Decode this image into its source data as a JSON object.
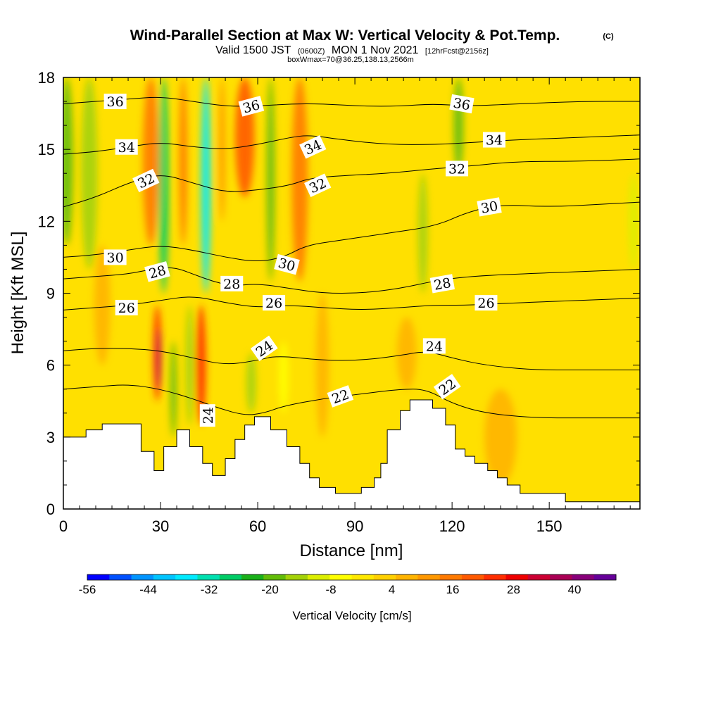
{
  "title": {
    "main": "Wind-Parallel Section at Max W: Vertical Velocity & Pot.Temp.",
    "copyright": "(C)",
    "valid_a": "Valid 1500 JST",
    "valid_utc": "(0600Z)",
    "valid_b": "MON 1 Nov 2021",
    "fcst": "[12hrFcst@2156z]",
    "box": "boxWmax=70@36.25,138.13,2566m"
  },
  "chart_data": {
    "type": "heatmap",
    "xlabel": "Distance [nm]",
    "ylabel": "Height [Kft MSL]",
    "xlim": [
      0,
      178
    ],
    "ylim": [
      0,
      18
    ],
    "xticks": [
      0,
      30,
      60,
      90,
      120,
      150
    ],
    "yticks": [
      0,
      3,
      6,
      9,
      12,
      15,
      18
    ],
    "colorbar": {
      "label": "Vertical Velocity [cm/s]",
      "tick_labels": [
        "-56",
        "-44",
        "-32",
        "-20",
        "-8",
        "4",
        "16",
        "28",
        "40"
      ],
      "colors": [
        "#0000ff",
        "#0050ff",
        "#0094ff",
        "#00c4ff",
        "#00eaff",
        "#00e0b0",
        "#00cc66",
        "#1ab01a",
        "#62bc08",
        "#a4d208",
        "#dcee00",
        "#ffff00",
        "#ffe800",
        "#ffd000",
        "#ffb400",
        "#ff9800",
        "#ff7a00",
        "#ff5a00",
        "#ff2e00",
        "#ee0000",
        "#cc0033",
        "#aa0055",
        "#88007a",
        "#660099"
      ]
    },
    "terrain_kft": [
      [
        0,
        3.0
      ],
      [
        7,
        3.0
      ],
      [
        7,
        3.3
      ],
      [
        12,
        3.3
      ],
      [
        12,
        3.55
      ],
      [
        24,
        3.55
      ],
      [
        24,
        2.4
      ],
      [
        28,
        2.4
      ],
      [
        28,
        1.6
      ],
      [
        31,
        1.6
      ],
      [
        31,
        2.6
      ],
      [
        35,
        2.6
      ],
      [
        35,
        3.3
      ],
      [
        39,
        3.3
      ],
      [
        39,
        2.6
      ],
      [
        43,
        2.6
      ],
      [
        43,
        1.9
      ],
      [
        46,
        1.9
      ],
      [
        46,
        1.4
      ],
      [
        50,
        1.4
      ],
      [
        50,
        2.1
      ],
      [
        53,
        2.1
      ],
      [
        53,
        2.9
      ],
      [
        56,
        2.9
      ],
      [
        56,
        3.5
      ],
      [
        59,
        3.5
      ],
      [
        59,
        3.85
      ],
      [
        64,
        3.85
      ],
      [
        64,
        3.3
      ],
      [
        69,
        3.3
      ],
      [
        69,
        2.6
      ],
      [
        73,
        2.6
      ],
      [
        73,
        1.9
      ],
      [
        76,
        1.9
      ],
      [
        76,
        1.3
      ],
      [
        79,
        1.3
      ],
      [
        79,
        0.9
      ],
      [
        84,
        0.9
      ],
      [
        84,
        0.65
      ],
      [
        92,
        0.65
      ],
      [
        92,
        0.9
      ],
      [
        96,
        0.9
      ],
      [
        96,
        1.3
      ],
      [
        98,
        1.3
      ],
      [
        98,
        1.9
      ],
      [
        100,
        1.9
      ],
      [
        100,
        3.3
      ],
      [
        104,
        3.3
      ],
      [
        104,
        4.1
      ],
      [
        107,
        4.1
      ],
      [
        107,
        4.55
      ],
      [
        114,
        4.55
      ],
      [
        114,
        4.2
      ],
      [
        118,
        4.2
      ],
      [
        118,
        3.5
      ],
      [
        121,
        3.5
      ],
      [
        121,
        2.5
      ],
      [
        124,
        2.5
      ],
      [
        124,
        2.2
      ],
      [
        127,
        2.2
      ],
      [
        127,
        1.9
      ],
      [
        131,
        1.9
      ],
      [
        131,
        1.6
      ],
      [
        134,
        1.6
      ],
      [
        134,
        1.3
      ],
      [
        137,
        1.3
      ],
      [
        137,
        1.0
      ],
      [
        141,
        1.0
      ],
      [
        141,
        0.65
      ],
      [
        155,
        0.65
      ],
      [
        155,
        0.3
      ],
      [
        178,
        0.3
      ]
    ],
    "w_features": [
      {
        "x": 1,
        "y0": 11,
        "y1": 18,
        "w": 4,
        "value": -20
      },
      {
        "x": 8,
        "y0": 10,
        "y1": 18,
        "w": 5,
        "value": -14
      },
      {
        "x": 12,
        "y0": 6,
        "y1": 11,
        "w": 5,
        "value": 12
      },
      {
        "x": 27,
        "y0": 11,
        "y1": 18,
        "w": 5,
        "value": 22
      },
      {
        "x": 31,
        "y0": 9,
        "y1": 18,
        "w": 3,
        "value": -26
      },
      {
        "x": 29,
        "y0": 4.5,
        "y1": 8.5,
        "w": 2.5,
        "value": 30
      },
      {
        "x": 29.5,
        "y0": 5,
        "y1": 7.5,
        "w": 1.2,
        "value": 46
      },
      {
        "x": 34,
        "y0": 3,
        "y1": 7,
        "w": 2,
        "value": -18
      },
      {
        "x": 37,
        "y0": 11,
        "y1": 18,
        "w": 2.5,
        "value": 20
      },
      {
        "x": 39,
        "y0": 3.5,
        "y1": 8.5,
        "w": 2.5,
        "value": -12
      },
      {
        "x": 42.5,
        "y0": 3.5,
        "y1": 8.5,
        "w": 3,
        "value": 32
      },
      {
        "x": 44,
        "y0": 9,
        "y1": 18,
        "w": 3,
        "value": -36
      },
      {
        "x": 49,
        "y0": 12,
        "y1": 18,
        "w": 2,
        "value": 18
      },
      {
        "x": 56,
        "y0": 13,
        "y1": 18,
        "w": 6,
        "value": 26
      },
      {
        "x": 58,
        "y0": 4,
        "y1": 6.5,
        "w": 3,
        "value": -14
      },
      {
        "x": 64,
        "y0": 9.5,
        "y1": 18,
        "w": 2.5,
        "value": -20
      },
      {
        "x": 68,
        "y0": 4,
        "y1": 7,
        "w": 3,
        "value": -4
      },
      {
        "x": 73,
        "y0": 9.5,
        "y1": 18,
        "w": 5,
        "value": 22
      },
      {
        "x": 80,
        "y0": 3,
        "y1": 9,
        "w": 4,
        "value": 14
      },
      {
        "x": 111,
        "y0": 9,
        "y1": 14,
        "w": 3,
        "value": -14
      },
      {
        "x": 122,
        "y0": 14,
        "y1": 18,
        "w": 3,
        "value": -18
      },
      {
        "x": 106,
        "y0": 5,
        "y1": 8,
        "w": 6,
        "value": 10
      },
      {
        "x": 135,
        "y0": 1,
        "y1": 5,
        "w": 10,
        "value": 12
      },
      {
        "x": 176,
        "y0": 10,
        "y1": 14,
        "w": 3,
        "value": -10
      }
    ],
    "theta_contours": [
      {
        "value": 22,
        "points": [
          [
            0,
            5.0
          ],
          [
            10,
            5.1
          ],
          [
            20,
            5.2
          ],
          [
            30,
            5.0
          ],
          [
            40,
            4.6
          ],
          [
            48,
            4.2
          ],
          [
            56,
            3.9
          ],
          [
            62,
            4.0
          ],
          [
            68,
            4.3
          ],
          [
            80,
            4.6
          ],
          [
            92,
            4.8
          ],
          [
            104,
            5.0
          ],
          [
            112,
            5.0
          ],
          [
            120,
            4.4
          ],
          [
            130,
            4.0
          ],
          [
            145,
            3.8
          ],
          [
            160,
            3.8
          ],
          [
            178,
            3.8
          ]
        ]
      },
      {
        "value": 24,
        "points": [
          [
            0,
            6.6
          ],
          [
            10,
            6.7
          ],
          [
            20,
            6.7
          ],
          [
            30,
            6.6
          ],
          [
            40,
            6.3
          ],
          [
            50,
            6.0
          ],
          [
            60,
            6.2
          ],
          [
            66,
            6.4
          ],
          [
            80,
            6.2
          ],
          [
            92,
            6.2
          ],
          [
            104,
            6.4
          ],
          [
            112,
            6.6
          ],
          [
            120,
            6.3
          ],
          [
            130,
            6.0
          ],
          [
            145,
            5.8
          ],
          [
            160,
            5.8
          ],
          [
            178,
            5.8
          ]
        ]
      },
      {
        "value": 26,
        "points": [
          [
            0,
            8.3
          ],
          [
            10,
            8.4
          ],
          [
            20,
            8.5
          ],
          [
            30,
            8.7
          ],
          [
            40,
            8.9
          ],
          [
            50,
            8.6
          ],
          [
            60,
            8.4
          ],
          [
            70,
            8.5
          ],
          [
            80,
            8.4
          ],
          [
            92,
            8.3
          ],
          [
            104,
            8.4
          ],
          [
            114,
            8.5
          ],
          [
            125,
            8.5
          ],
          [
            140,
            8.6
          ],
          [
            160,
            8.7
          ],
          [
            178,
            8.8
          ]
        ]
      },
      {
        "value": 28,
        "points": [
          [
            0,
            9.6
          ],
          [
            10,
            9.7
          ],
          [
            20,
            9.8
          ],
          [
            27,
            10.0
          ],
          [
            34,
            10.1
          ],
          [
            40,
            9.8
          ],
          [
            46,
            9.5
          ],
          [
            52,
            9.3
          ],
          [
            60,
            9.4
          ],
          [
            70,
            9.2
          ],
          [
            80,
            9.0
          ],
          [
            92,
            9.0
          ],
          [
            104,
            9.2
          ],
          [
            114,
            9.5
          ],
          [
            125,
            9.7
          ],
          [
            140,
            9.8
          ],
          [
            160,
            9.9
          ],
          [
            178,
            10.0
          ]
        ]
      },
      {
        "value": 30,
        "points": [
          [
            0,
            10.5
          ],
          [
            10,
            10.6
          ],
          [
            20,
            10.8
          ],
          [
            30,
            11.0
          ],
          [
            40,
            10.8
          ],
          [
            50,
            10.5
          ],
          [
            60,
            10.3
          ],
          [
            68,
            10.5
          ],
          [
            75,
            11.0
          ],
          [
            85,
            11.2
          ],
          [
            100,
            11.5
          ],
          [
            115,
            11.8
          ],
          [
            125,
            12.4
          ],
          [
            135,
            12.7
          ],
          [
            150,
            12.6
          ],
          [
            165,
            12.7
          ],
          [
            178,
            12.8
          ]
        ]
      },
      {
        "value": 32,
        "points": [
          [
            0,
            12.6
          ],
          [
            10,
            13.0
          ],
          [
            20,
            13.6
          ],
          [
            30,
            14.0
          ],
          [
            40,
            13.6
          ],
          [
            50,
            13.2
          ],
          [
            60,
            13.3
          ],
          [
            70,
            13.5
          ],
          [
            76,
            13.8
          ],
          [
            86,
            13.9
          ],
          [
            100,
            14.0
          ],
          [
            115,
            14.2
          ],
          [
            125,
            14.3
          ],
          [
            140,
            14.5
          ],
          [
            160,
            14.5
          ],
          [
            178,
            14.6
          ]
        ]
      },
      {
        "value": 34,
        "points": [
          [
            0,
            14.8
          ],
          [
            10,
            14.9
          ],
          [
            20,
            15.1
          ],
          [
            30,
            15.3
          ],
          [
            40,
            15.1
          ],
          [
            50,
            15.0
          ],
          [
            60,
            15.2
          ],
          [
            70,
            15.5
          ],
          [
            76,
            15.6
          ],
          [
            86,
            15.4
          ],
          [
            100,
            15.2
          ],
          [
            115,
            15.2
          ],
          [
            128,
            15.3
          ],
          [
            140,
            15.4
          ],
          [
            160,
            15.5
          ],
          [
            178,
            15.6
          ]
        ]
      },
      {
        "value": 36,
        "points": [
          [
            0,
            16.9
          ],
          [
            10,
            17.0
          ],
          [
            20,
            17.1
          ],
          [
            30,
            17.2
          ],
          [
            40,
            17.0
          ],
          [
            50,
            16.8
          ],
          [
            60,
            16.8
          ],
          [
            70,
            16.9
          ],
          [
            80,
            16.9
          ],
          [
            92,
            16.8
          ],
          [
            104,
            16.8
          ],
          [
            114,
            16.9
          ],
          [
            125,
            16.8
          ],
          [
            140,
            16.9
          ],
          [
            160,
            17.0
          ],
          [
            178,
            17.0
          ]
        ]
      }
    ],
    "contour_labels": [
      {
        "text": "36",
        "x": 16,
        "y": 17.0,
        "rot": 0
      },
      {
        "text": "34",
        "x": 19.5,
        "y": 15.1,
        "rot": 0
      },
      {
        "text": "32",
        "x": 25.5,
        "y": 13.7,
        "rot": -25
      },
      {
        "text": "30",
        "x": 16,
        "y": 10.5,
        "rot": 0
      },
      {
        "text": "28",
        "x": 29,
        "y": 9.9,
        "rot": -15
      },
      {
        "text": "26",
        "x": 19.5,
        "y": 8.4,
        "rot": 0
      },
      {
        "text": "24",
        "x": 44.5,
        "y": 3.9,
        "rot": -90
      },
      {
        "text": "28",
        "x": 52,
        "y": 9.4,
        "rot": 0
      },
      {
        "text": "36",
        "x": 58,
        "y": 16.8,
        "rot": -15
      },
      {
        "text": "34",
        "x": 77,
        "y": 15.1,
        "rot": -25
      },
      {
        "text": "32",
        "x": 78.5,
        "y": 13.5,
        "rot": -25
      },
      {
        "text": "30",
        "x": 69,
        "y": 10.2,
        "rot": 15
      },
      {
        "text": "26",
        "x": 65,
        "y": 8.6,
        "rot": 0
      },
      {
        "text": "24",
        "x": 62,
        "y": 6.7,
        "rot": -35
      },
      {
        "text": "22",
        "x": 85.5,
        "y": 4.7,
        "rot": -20
      },
      {
        "text": "36",
        "x": 123,
        "y": 16.9,
        "rot": 10
      },
      {
        "text": "34",
        "x": 133,
        "y": 15.4,
        "rot": 0
      },
      {
        "text": "32",
        "x": 121.5,
        "y": 14.2,
        "rot": 0
      },
      {
        "text": "30",
        "x": 131.5,
        "y": 12.6,
        "rot": -10
      },
      {
        "text": "28",
        "x": 117,
        "y": 9.4,
        "rot": -10
      },
      {
        "text": "26",
        "x": 130.5,
        "y": 8.6,
        "rot": 0
      },
      {
        "text": "24",
        "x": 114.5,
        "y": 6.8,
        "rot": 0
      },
      {
        "text": "22",
        "x": 118.5,
        "y": 5.1,
        "rot": -35
      }
    ]
  }
}
